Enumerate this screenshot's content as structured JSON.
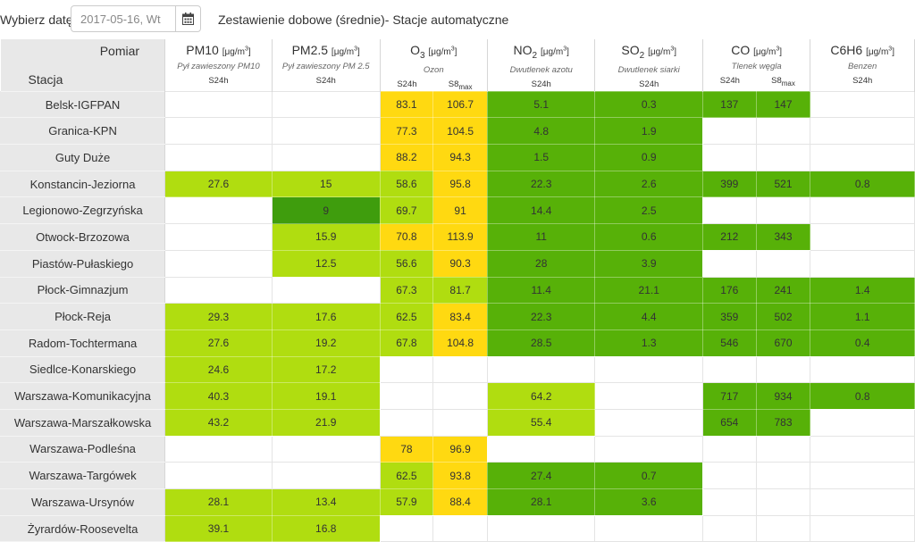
{
  "toolbar": {
    "date_label": "Wybierz datę:",
    "date_value": "2017-05-16, Wt",
    "calendar_icon": "calendar-icon",
    "title": "Zestawienie dobowe (średnie)- Stacje automatyczne"
  },
  "header": {
    "pomiar": "Pomiar",
    "stacja": "Stacja",
    "columns": [
      {
        "name": "PM10",
        "unit": "[μg/m3]",
        "desc": "Pył zawieszony PM10",
        "avg": [
          "S24h"
        ]
      },
      {
        "name": "PM2.5",
        "unit": "[μg/m3]",
        "desc": "Pył zawieszony PM 2.5",
        "avg": [
          "S24h"
        ]
      },
      {
        "name": "O",
        "sub": "3",
        "unit": "[μg/m3]",
        "desc": "Ozon",
        "avg": [
          "S24h",
          "S8max"
        ]
      },
      {
        "name": "NO",
        "sub": "2",
        "unit": "[μg/m3]",
        "desc": "Dwutlenek azotu",
        "avg": [
          "S24h"
        ]
      },
      {
        "name": "SO",
        "sub": "2",
        "unit": "[μg/m3]",
        "desc": "Dwutlenek siarki",
        "avg": [
          "S24h"
        ]
      },
      {
        "name": "CO",
        "unit": "[μg/m3]",
        "desc": "Tlenek węgla",
        "avg": [
          "S24h",
          "S8max"
        ]
      },
      {
        "name": "C6H6",
        "unit": "[μg/m3]",
        "desc": "Benzen",
        "avg": [
          "S24h"
        ]
      }
    ]
  },
  "colors": {
    "empty": "#ffffff",
    "good": "#57b108",
    "very_good": "#3f9d0d",
    "moderate": "#b0dd10",
    "sufficient": "#ffd911"
  },
  "rows": [
    {
      "station": "Belsk-IGFPAN",
      "cells": [
        [
          "",
          ""
        ],
        [
          "",
          ""
        ],
        [
          "83.1",
          "y"
        ],
        [
          "106.7",
          "y"
        ],
        [
          "5.1",
          "g"
        ],
        [
          "0.3",
          "g"
        ],
        [
          "137",
          "g"
        ],
        [
          "147",
          "g"
        ],
        [
          "",
          ""
        ]
      ]
    },
    {
      "station": "Granica-KPN",
      "cells": [
        [
          "",
          ""
        ],
        [
          "",
          ""
        ],
        [
          "77.3",
          "y"
        ],
        [
          "104.5",
          "y"
        ],
        [
          "4.8",
          "g"
        ],
        [
          "1.9",
          "g"
        ],
        [
          "",
          ""
        ],
        [
          "",
          ""
        ],
        [
          "",
          ""
        ]
      ]
    },
    {
      "station": "Guty Duże",
      "cells": [
        [
          "",
          ""
        ],
        [
          "",
          ""
        ],
        [
          "88.2",
          "y"
        ],
        [
          "94.3",
          "y"
        ],
        [
          "1.5",
          "g"
        ],
        [
          "0.9",
          "g"
        ],
        [
          "",
          ""
        ],
        [
          "",
          ""
        ],
        [
          "",
          ""
        ]
      ]
    },
    {
      "station": "Konstancin-Jeziorna",
      "cells": [
        [
          "27.6",
          "l"
        ],
        [
          "15",
          "l"
        ],
        [
          "58.6",
          "l"
        ],
        [
          "95.8",
          "y"
        ],
        [
          "22.3",
          "g"
        ],
        [
          "2.6",
          "g"
        ],
        [
          "399",
          "g"
        ],
        [
          "521",
          "g"
        ],
        [
          "0.8",
          "g"
        ]
      ]
    },
    {
      "station": "Legionowo-Zegrzyńska",
      "cells": [
        [
          "",
          ""
        ],
        [
          "9",
          "d"
        ],
        [
          "69.7",
          "l"
        ],
        [
          "91",
          "y"
        ],
        [
          "14.4",
          "g"
        ],
        [
          "2.5",
          "g"
        ],
        [
          "",
          ""
        ],
        [
          "",
          ""
        ],
        [
          "",
          ""
        ]
      ]
    },
    {
      "station": "Otwock-Brzozowa",
      "cells": [
        [
          "",
          ""
        ],
        [
          "15.9",
          "l"
        ],
        [
          "70.8",
          "y"
        ],
        [
          "113.9",
          "y"
        ],
        [
          "11",
          "g"
        ],
        [
          "0.6",
          "g"
        ],
        [
          "212",
          "g"
        ],
        [
          "343",
          "g"
        ],
        [
          "",
          ""
        ]
      ]
    },
    {
      "station": "Piastów-Pułaskiego",
      "cells": [
        [
          "",
          ""
        ],
        [
          "12.5",
          "l"
        ],
        [
          "56.6",
          "l"
        ],
        [
          "90.3",
          "y"
        ],
        [
          "28",
          "g"
        ],
        [
          "3.9",
          "g"
        ],
        [
          "",
          ""
        ],
        [
          "",
          ""
        ],
        [
          "",
          ""
        ]
      ]
    },
    {
      "station": "Płock-Gimnazjum",
      "cells": [
        [
          "",
          ""
        ],
        [
          "",
          ""
        ],
        [
          "67.3",
          "l"
        ],
        [
          "81.7",
          "l"
        ],
        [
          "11.4",
          "g"
        ],
        [
          "21.1",
          "g"
        ],
        [
          "176",
          "g"
        ],
        [
          "241",
          "g"
        ],
        [
          "1.4",
          "g"
        ]
      ]
    },
    {
      "station": "Płock-Reja",
      "cells": [
        [
          "29.3",
          "l"
        ],
        [
          "17.6",
          "l"
        ],
        [
          "62.5",
          "l"
        ],
        [
          "83.4",
          "y"
        ],
        [
          "22.3",
          "g"
        ],
        [
          "4.4",
          "g"
        ],
        [
          "359",
          "g"
        ],
        [
          "502",
          "g"
        ],
        [
          "1.1",
          "g"
        ]
      ]
    },
    {
      "station": "Radom-Tochtermana",
      "cells": [
        [
          "27.6",
          "l"
        ],
        [
          "19.2",
          "l"
        ],
        [
          "67.8",
          "l"
        ],
        [
          "104.8",
          "y"
        ],
        [
          "28.5",
          "g"
        ],
        [
          "1.3",
          "g"
        ],
        [
          "546",
          "g"
        ],
        [
          "670",
          "g"
        ],
        [
          "0.4",
          "g"
        ]
      ]
    },
    {
      "station": "Siedlce-Konarskiego",
      "cells": [
        [
          "24.6",
          "l"
        ],
        [
          "17.2",
          "l"
        ],
        [
          "",
          ""
        ],
        [
          "",
          ""
        ],
        [
          "",
          ""
        ],
        [
          "",
          ""
        ],
        [
          "",
          ""
        ],
        [
          "",
          ""
        ],
        [
          "",
          ""
        ]
      ]
    },
    {
      "station": "Warszawa-Komunikacyjna",
      "cells": [
        [
          "40.3",
          "l"
        ],
        [
          "19.1",
          "l"
        ],
        [
          "",
          ""
        ],
        [
          "",
          ""
        ],
        [
          "64.2",
          "l"
        ],
        [
          "",
          ""
        ],
        [
          "717",
          "g"
        ],
        [
          "934",
          "g"
        ],
        [
          "0.8",
          "g"
        ]
      ]
    },
    {
      "station": "Warszawa-Marszałkowska",
      "cells": [
        [
          "43.2",
          "l"
        ],
        [
          "21.9",
          "l"
        ],
        [
          "",
          ""
        ],
        [
          "",
          ""
        ],
        [
          "55.4",
          "l"
        ],
        [
          "",
          ""
        ],
        [
          "654",
          "g"
        ],
        [
          "783",
          "g"
        ],
        [
          "",
          ""
        ]
      ]
    },
    {
      "station": "Warszawa-Podleśna",
      "cells": [
        [
          "",
          ""
        ],
        [
          "",
          ""
        ],
        [
          "78",
          "y"
        ],
        [
          "96.9",
          "y"
        ],
        [
          "",
          ""
        ],
        [
          "",
          ""
        ],
        [
          "",
          ""
        ],
        [
          "",
          ""
        ],
        [
          "",
          ""
        ]
      ]
    },
    {
      "station": "Warszawa-Targówek",
      "cells": [
        [
          "",
          ""
        ],
        [
          "",
          ""
        ],
        [
          "62.5",
          "l"
        ],
        [
          "93.8",
          "y"
        ],
        [
          "27.4",
          "g"
        ],
        [
          "0.7",
          "g"
        ],
        [
          "",
          ""
        ],
        [
          "",
          ""
        ],
        [
          "",
          ""
        ]
      ]
    },
    {
      "station": "Warszawa-Ursynów",
      "cells": [
        [
          "28.1",
          "l"
        ],
        [
          "13.4",
          "l"
        ],
        [
          "57.9",
          "l"
        ],
        [
          "88.4",
          "y"
        ],
        [
          "28.1",
          "g"
        ],
        [
          "3.6",
          "g"
        ],
        [
          "",
          ""
        ],
        [
          "",
          ""
        ],
        [
          "",
          ""
        ]
      ]
    },
    {
      "station": "Żyrardów-Roosevelta",
      "cells": [
        [
          "39.1",
          "l"
        ],
        [
          "16.8",
          "l"
        ],
        [
          "",
          ""
        ],
        [
          "",
          ""
        ],
        [
          "",
          ""
        ],
        [
          "",
          ""
        ],
        [
          "",
          ""
        ],
        [
          "",
          ""
        ],
        [
          "",
          ""
        ]
      ]
    }
  ]
}
